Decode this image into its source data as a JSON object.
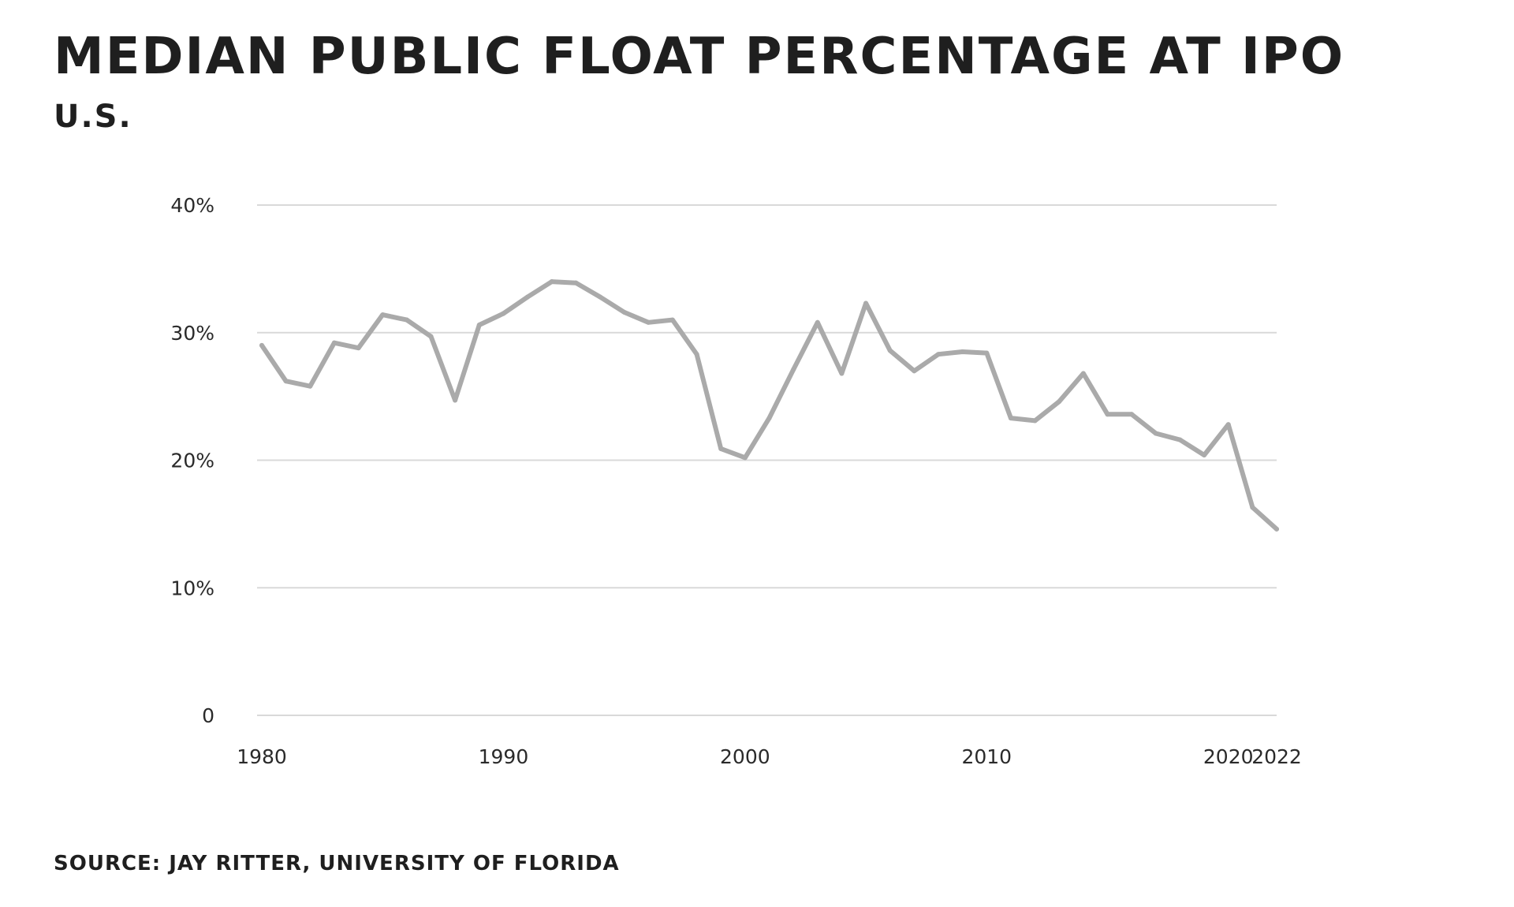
{
  "title": "MEDIAN PUBLIC FLOAT PERCENTAGE AT IPO",
  "subtitle": "U.S.",
  "source": "SOURCE: JAY RITTER, UNIVERSITY OF FLORIDA",
  "colors": {
    "line": "#aaaaaa",
    "grid": "#d9d9d9",
    "text": "#1f1f1f"
  },
  "chart_data": {
    "type": "line",
    "title": "MEDIAN PUBLIC FLOAT PERCENTAGE AT IPO",
    "subtitle": "U.S.",
    "xlabel": "",
    "ylabel": "",
    "xlim": [
      1980,
      2022
    ],
    "ylim": [
      0,
      40
    ],
    "grid": true,
    "y_ticks": [
      0,
      10,
      20,
      30,
      40
    ],
    "y_tick_labels": [
      "0",
      "10%",
      "20%",
      "30%",
      "40%"
    ],
    "x_ticks": [
      1980,
      1990,
      2000,
      2010,
      2020,
      2022
    ],
    "x_tick_labels": [
      "1980",
      "1990",
      "2000",
      "2010",
      "2020",
      "2022"
    ],
    "series": [
      {
        "x": [
          1980,
          1981,
          1982,
          1983,
          1984,
          1985,
          1986,
          1987,
          1988,
          1989,
          1990,
          1991,
          1992,
          1993,
          1994,
          1995,
          1996,
          1997,
          1998,
          1999,
          2000,
          2001,
          2002,
          2003,
          2004,
          2005,
          2006,
          2007,
          2008,
          2009,
          2010,
          2011,
          2012,
          2013,
          2014,
          2015,
          2016,
          2017,
          2018,
          2019,
          2020,
          2021,
          2022
        ],
        "values": [
          29.0,
          26.2,
          25.8,
          29.2,
          28.8,
          31.4,
          31.0,
          29.7,
          24.7,
          30.6,
          31.5,
          32.8,
          34.0,
          33.9,
          32.8,
          31.6,
          30.8,
          31.0,
          28.3,
          20.9,
          20.2,
          23.3,
          27.1,
          30.8,
          26.8,
          32.3,
          28.6,
          27.0,
          28.3,
          28.5,
          28.4,
          23.3,
          23.1,
          24.6,
          26.8,
          23.6,
          23.6,
          22.1,
          21.6,
          20.4,
          22.8,
          16.3,
          14.6
        ]
      }
    ]
  }
}
